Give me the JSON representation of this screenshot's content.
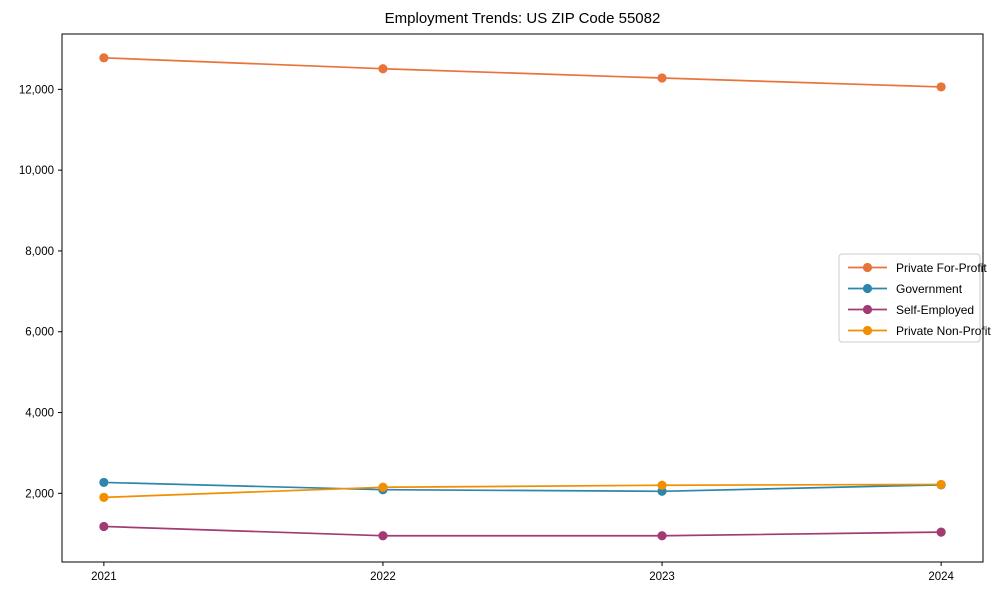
{
  "figure": {
    "title": "Employment Trends: US ZIP Code 55082"
  },
  "chart_data": {
    "type": "line",
    "title": "Employment Trends: US ZIP Code 55082",
    "xlabel": "",
    "ylabel": "",
    "x": [
      2021,
      2022,
      2023,
      2024
    ],
    "x_tick_labels": [
      "2021",
      "2022",
      "2023",
      "2024"
    ],
    "series": [
      {
        "name": "Private For-Profit",
        "color": "#E8743B",
        "values": [
          12780,
          12510,
          12280,
          12060
        ]
      },
      {
        "name": "Government",
        "color": "#2E86AB",
        "values": [
          2270,
          2090,
          2050,
          2210
        ]
      },
      {
        "name": "Self-Employed",
        "color": "#A23B72",
        "values": [
          1180,
          950,
          950,
          1040
        ]
      },
      {
        "name": "Private Non-Profit",
        "color": "#F18F01",
        "values": [
          1900,
          2150,
          2200,
          2220
        ]
      }
    ],
    "yticks": {
      "values": [
        2000,
        4000,
        6000,
        8000,
        10000,
        12000
      ],
      "labels": [
        "2,000",
        "4,000",
        "6,000",
        "8,000",
        "10,000",
        "12,000"
      ]
    },
    "ylim": [
      300,
      13370
    ],
    "xlim": [
      2020.85,
      2024.15
    ],
    "grid": false,
    "marker": "circle",
    "legend": {
      "position": "center-right",
      "entries": [
        "Private For-Profit",
        "Government",
        "Self-Employed",
        "Private Non-Profit"
      ]
    },
    "axis_color": "#000000",
    "legend_border_color": "#cccccc"
  }
}
